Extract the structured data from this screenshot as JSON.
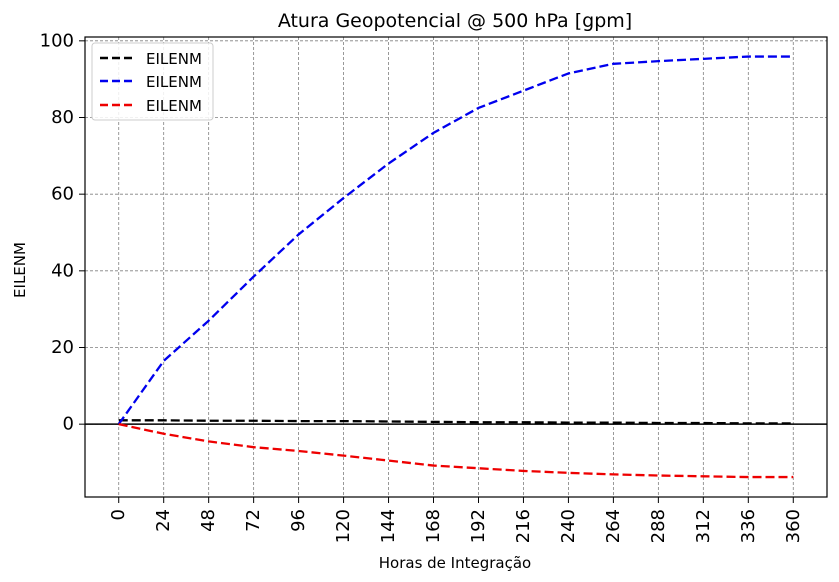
{
  "chart_data": {
    "type": "line",
    "title": "Atura Geopotencial @ 500 hPa [gpm]",
    "xlabel": "Horas de Integração",
    "ylabel": "EILENM",
    "x": [
      0,
      24,
      48,
      72,
      96,
      120,
      144,
      168,
      192,
      216,
      240,
      264,
      288,
      312,
      336,
      360
    ],
    "xticks": [
      "0",
      "24",
      "48",
      "72",
      "96",
      "120",
      "144",
      "168",
      "192",
      "216",
      "240",
      "264",
      "288",
      "312",
      "336",
      "360"
    ],
    "yticks": [
      "0",
      "20",
      "40",
      "60",
      "80",
      "100"
    ],
    "xlim": [
      -18,
      378
    ],
    "ylim": [
      -19,
      101
    ],
    "grid": true,
    "legend_position": "top-left",
    "zero_line": true,
    "series": [
      {
        "name": "EILENM",
        "color": "#000000",
        "style": "dashed",
        "values": [
          1.0,
          1.0,
          0.9,
          0.9,
          0.8,
          0.8,
          0.7,
          0.6,
          0.5,
          0.5,
          0.4,
          0.4,
          0.3,
          0.3,
          0.2,
          0.2
        ]
      },
      {
        "name": "EILENM",
        "color": "#0000ee",
        "style": "dashed",
        "values": [
          0.0,
          16.5,
          27.0,
          38.5,
          49.5,
          59.0,
          68.0,
          76.0,
          82.5,
          87.0,
          91.5,
          94.0,
          94.7,
          95.3,
          95.9,
          95.9
        ]
      },
      {
        "name": "EILENM",
        "color": "#ee0000",
        "style": "dashed",
        "values": [
          0.0,
          -2.5,
          -4.5,
          -6.0,
          -7.0,
          -8.2,
          -9.5,
          -10.8,
          -11.5,
          -12.2,
          -12.7,
          -13.1,
          -13.4,
          -13.6,
          -13.8,
          -13.8
        ]
      }
    ]
  }
}
